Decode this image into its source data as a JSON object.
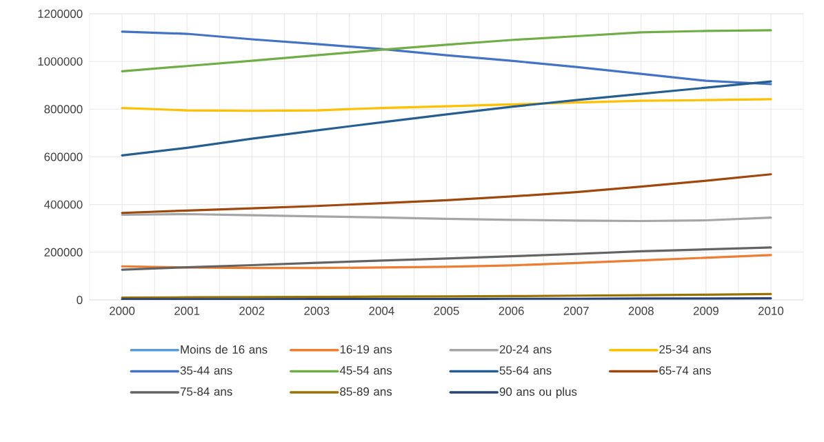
{
  "chart_data": {
    "type": "line",
    "categories": [
      "2000",
      "2001",
      "2002",
      "2003",
      "2004",
      "2005",
      "2006",
      "2007",
      "2008",
      "2009",
      "2010"
    ],
    "series": [
      {
        "name": "Moins de 16 ans",
        "color": "#5b9bd5",
        "values": [
          null,
          null,
          null,
          null,
          null,
          null,
          null,
          null,
          null,
          null,
          null
        ]
      },
      {
        "name": "16-19 ans",
        "color": "#ed7d31",
        "values": [
          141000,
          136000,
          134000,
          134000,
          136000,
          139000,
          145000,
          155000,
          166000,
          177000,
          188000
        ]
      },
      {
        "name": "20-24 ans",
        "color": "#a5a5a5",
        "values": [
          357000,
          360000,
          355000,
          350000,
          346000,
          340000,
          336000,
          333000,
          331000,
          334000,
          345000
        ]
      },
      {
        "name": "25-34 ans",
        "color": "#ffc000",
        "values": [
          805000,
          795000,
          793000,
          795000,
          805000,
          812000,
          820000,
          828000,
          835000,
          838000,
          842000
        ]
      },
      {
        "name": "35-44 ans",
        "color": "#4472c4",
        "values": [
          1125000,
          1116000,
          1093000,
          1073000,
          1052000,
          1026000,
          1003000,
          977000,
          948000,
          919000,
          905000
        ]
      },
      {
        "name": "45-54 ans",
        "color": "#70ad47",
        "values": [
          959000,
          981000,
          1003000,
          1026000,
          1049000,
          1070000,
          1090000,
          1106000,
          1122000,
          1128000,
          1131000
        ]
      },
      {
        "name": "55-64 ans",
        "color": "#255e91",
        "values": [
          606000,
          638000,
          676000,
          711000,
          745000,
          778000,
          810000,
          838000,
          864000,
          890000,
          916000
        ]
      },
      {
        "name": "65-74 ans",
        "color": "#9e480e",
        "values": [
          365000,
          375000,
          384000,
          394000,
          406000,
          418000,
          434000,
          452000,
          475000,
          500000,
          527000
        ]
      },
      {
        "name": "75-84 ans",
        "color": "#636363",
        "values": [
          127000,
          137000,
          146000,
          156000,
          165000,
          174000,
          183000,
          193000,
          204000,
          212000,
          220000
        ]
      },
      {
        "name": "85-89 ans",
        "color": "#997300",
        "values": [
          10000,
          11000,
          12000,
          13000,
          14000,
          15000,
          16000,
          18000,
          20000,
          22000,
          25000
        ]
      },
      {
        "name": "90 ans ou plus",
        "color": "#264478",
        "values": [
          3000,
          3000,
          3000,
          4000,
          4000,
          4000,
          5000,
          5000,
          6000,
          6000,
          7000
        ]
      }
    ],
    "ylim": [
      0,
      1200000
    ],
    "yticks": [
      0,
      200000,
      400000,
      600000,
      800000,
      1000000,
      1200000
    ],
    "grid": true,
    "legend": "bottom",
    "marker": "none",
    "line_style": "solid"
  }
}
